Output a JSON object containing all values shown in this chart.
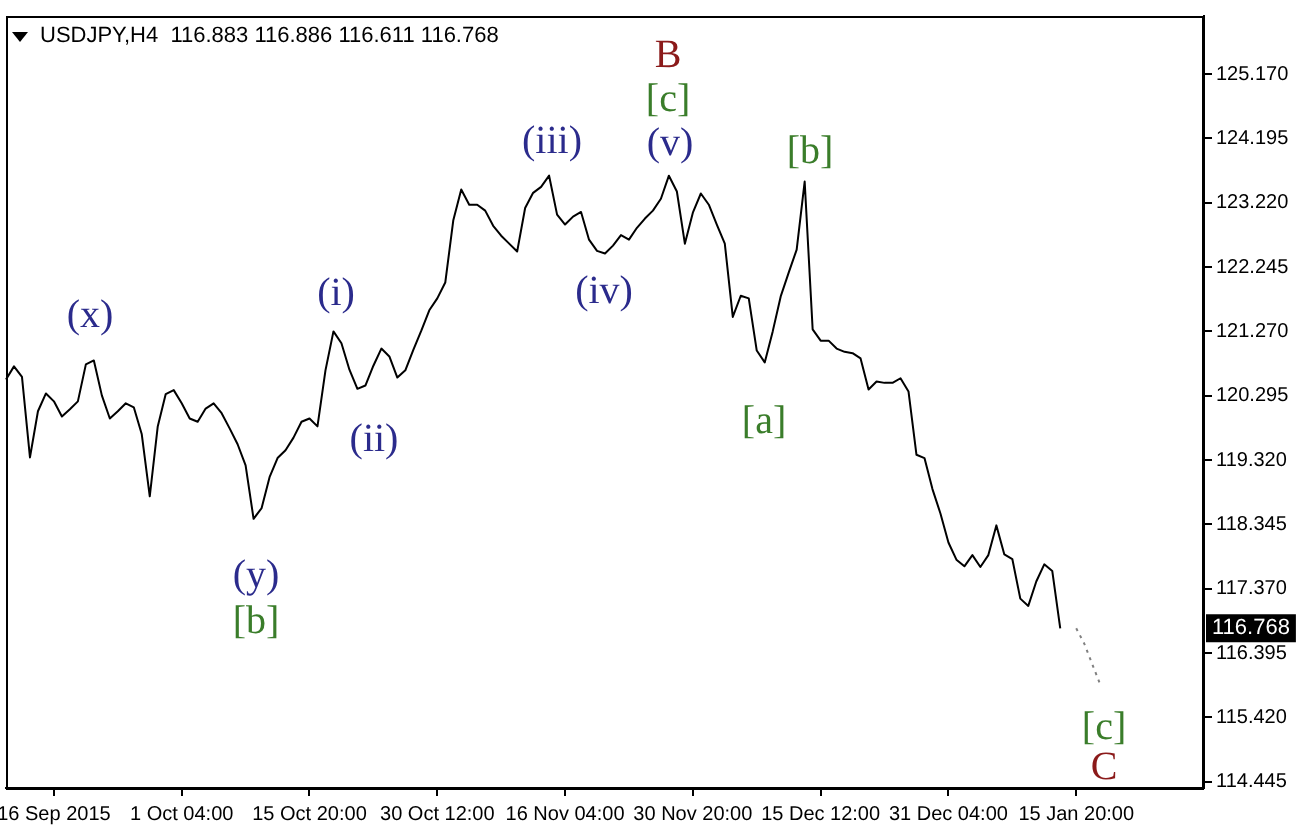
{
  "chart_data": {
    "type": "line",
    "title": "USDJPY,H4  116.883 116.886 116.611 116.768",
    "categories": [
      null,
      null,
      null,
      null,
      null,
      null,
      "16 Sep 2015",
      null,
      null,
      null,
      null,
      null,
      null,
      null,
      null,
      null,
      null,
      null,
      null,
      null,
      null,
      null,
      "1 Oct 04:00",
      null,
      null,
      null,
      null,
      null,
      null,
      null,
      null,
      null,
      null,
      null,
      null,
      null,
      null,
      null,
      "15 Oct 20:00",
      null,
      null,
      null,
      null,
      null,
      null,
      null,
      null,
      null,
      null,
      null,
      null,
      null,
      null,
      null,
      "30 Oct 12:00",
      null,
      null,
      null,
      null,
      null,
      null,
      null,
      null,
      null,
      null,
      null,
      null,
      null,
      null,
      null,
      "16 Nov 04:00",
      null,
      null,
      null,
      null,
      null,
      null,
      null,
      null,
      null,
      null,
      null,
      null,
      null,
      null,
      null,
      "30 Nov 20:00",
      null,
      null,
      null,
      null,
      null,
      null,
      null,
      null,
      null,
      null,
      null,
      null,
      null,
      null,
      null,
      "15 Dec 12:00",
      null,
      null,
      null,
      null,
      null,
      null,
      null,
      null,
      null,
      null,
      null,
      null,
      null,
      null,
      null,
      "31 Dec 04:00",
      null,
      null,
      null,
      null,
      null,
      null,
      null,
      null,
      null,
      null,
      null,
      null,
      null,
      null,
      null,
      "15 Jan 20:00",
      null,
      null,
      null,
      null,
      null,
      null,
      null,
      null,
      null,
      null,
      null,
      null,
      null,
      null,
      null,
      null
    ],
    "ylim": [
      114.35,
      126.05
    ],
    "yticks": [
      {
        "value": 114.445,
        "label": "114.445"
      },
      {
        "value": 115.42,
        "label": "115.420"
      },
      {
        "value": 116.395,
        "label": "116.395"
      },
      {
        "value": 117.37,
        "label": "117.370"
      },
      {
        "value": 118.345,
        "label": "118.345"
      },
      {
        "value": 119.32,
        "label": "119.320"
      },
      {
        "value": 120.295,
        "label": "120.295"
      },
      {
        "value": 121.27,
        "label": "121.270"
      },
      {
        "value": 122.245,
        "label": "122.245"
      },
      {
        "value": 123.22,
        "label": "123.220"
      },
      {
        "value": 124.195,
        "label": "124.195"
      },
      {
        "value": 125.17,
        "label": "125.170"
      }
    ],
    "grid": false,
    "legend": false,
    "marker": "none",
    "series": [
      {
        "color": "#000000",
        "line_style": "solid",
        "values": [
          120.54,
          120.74,
          120.58,
          119.36,
          120.06,
          120.33,
          120.21,
          119.98,
          120.09,
          120.21,
          120.77,
          120.83,
          120.3,
          119.95,
          120.06,
          120.18,
          120.12,
          119.71,
          118.77,
          119.83,
          120.32,
          120.38,
          120.18,
          119.95,
          119.9,
          120.1,
          120.18,
          120.03,
          119.8,
          119.56,
          119.24,
          118.43,
          118.59,
          119.06,
          119.35,
          119.47,
          119.66,
          119.9,
          119.95,
          119.83,
          120.68,
          121.27,
          121.09,
          120.69,
          120.4,
          120.45,
          120.75,
          121.01,
          120.89,
          120.57,
          120.68,
          120.99,
          121.28,
          121.59,
          121.77,
          122.01,
          122.95,
          123.42,
          123.19,
          123.19,
          123.1,
          122.87,
          122.72,
          122.6,
          122.48,
          123.14,
          123.37,
          123.46,
          123.63,
          123.04,
          122.89,
          123.01,
          123.08,
          122.66,
          122.49,
          122.45,
          122.57,
          122.73,
          122.66,
          122.84,
          122.98,
          123.1,
          123.28,
          123.63,
          123.39,
          122.6,
          123.07,
          123.36,
          123.19,
          122.89,
          122.6,
          121.49,
          121.81,
          121.77,
          120.98,
          120.8,
          121.27,
          121.8,
          122.16,
          122.51,
          123.54,
          121.3,
          121.13,
          121.13,
          121.01,
          120.96,
          120.94,
          120.86,
          120.39,
          120.51,
          120.49,
          120.49,
          120.56,
          120.36,
          119.4,
          119.35,
          118.88,
          118.51,
          118.07,
          117.81,
          117.71,
          117.88,
          117.7,
          117.88,
          118.33,
          117.89,
          117.82,
          117.22,
          117.11,
          117.48,
          117.74,
          117.64,
          116.77,
          null,
          null,
          null,
          null,
          null,
          null,
          null,
          null,
          null,
          null,
          null,
          null,
          null,
          null,
          null,
          null,
          null,
          null
        ]
      },
      {
        "color": "#808080",
        "line_style": "dotted",
        "values": [
          null,
          null,
          null,
          null,
          null,
          null,
          null,
          null,
          null,
          null,
          null,
          null,
          null,
          null,
          null,
          null,
          null,
          null,
          null,
          null,
          null,
          null,
          null,
          null,
          null,
          null,
          null,
          null,
          null,
          null,
          null,
          null,
          null,
          null,
          null,
          null,
          null,
          null,
          null,
          null,
          null,
          null,
          null,
          null,
          null,
          null,
          null,
          null,
          null,
          null,
          null,
          null,
          null,
          null,
          null,
          null,
          null,
          null,
          null,
          null,
          null,
          null,
          null,
          null,
          null,
          null,
          null,
          null,
          null,
          null,
          null,
          null,
          null,
          null,
          null,
          null,
          null,
          null,
          null,
          null,
          null,
          null,
          null,
          null,
          null,
          null,
          null,
          null,
          null,
          null,
          null,
          null,
          null,
          null,
          null,
          null,
          null,
          null,
          null,
          null,
          null,
          null,
          null,
          null,
          null,
          null,
          null,
          null,
          null,
          null,
          null,
          null,
          null,
          null,
          null,
          null,
          null,
          null,
          null,
          null,
          null,
          null,
          null,
          null,
          null,
          null,
          null,
          null,
          null,
          null,
          null,
          null,
          null,
          null,
          116.77,
          116.54,
          116.23,
          115.92,
          null,
          null,
          null,
          null,
          null,
          null,
          null,
          null,
          null,
          null,
          null,
          null,
          null
        ]
      }
    ],
    "annotations": [
      "(x)",
      "(y)",
      "[b]",
      "(i)",
      "(ii)",
      "(iii)",
      "(iv)",
      "(v)",
      "[c]",
      "B",
      "[b]",
      "[a]",
      "[c]",
      "C",
      "116.768"
    ]
  }
}
